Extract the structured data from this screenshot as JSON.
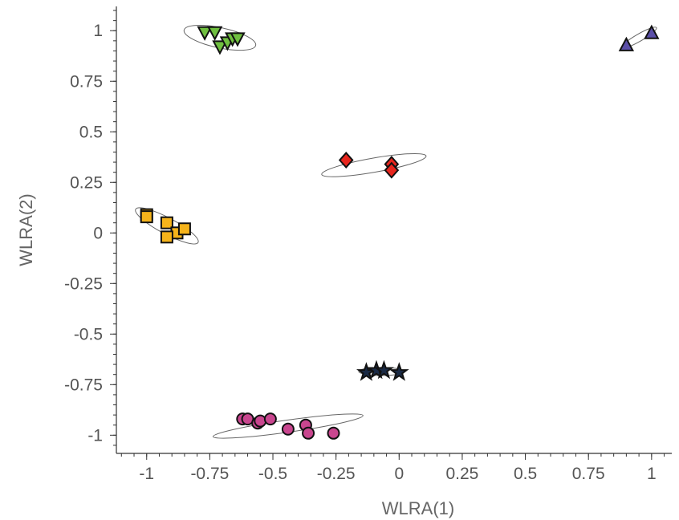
{
  "chart_data": {
    "type": "scatter",
    "title": "",
    "xlabel": "WLRA(1)",
    "ylabel": "WLRA(2)",
    "xlim": [
      -1.12,
      1.08
    ],
    "ylim": [
      -1.09,
      1.12
    ],
    "grid": false,
    "x_ticks": [
      -1,
      -0.75,
      -0.5,
      -0.25,
      0,
      0.25,
      0.5,
      0.75,
      1
    ],
    "x_tick_labels": [
      "-1",
      "-0.75",
      "-0.5",
      "-0.25",
      "0",
      "0.25",
      "0.5",
      "0.75",
      "1"
    ],
    "y_ticks": [
      1,
      0.75,
      0.5,
      0.25,
      0,
      -0.25,
      -0.5,
      -0.75,
      -1
    ],
    "y_tick_labels": [
      "1",
      "0.75",
      "0.5",
      "0.25",
      "0",
      "-0.25",
      "-0.5",
      "-0.75",
      "-1"
    ],
    "series": [
      {
        "marker": "triangle-down",
        "color": "#6fbf3f",
        "points": [
          [
            -0.77,
            0.99
          ],
          [
            -0.73,
            0.99
          ],
          [
            -0.71,
            0.92
          ],
          [
            -0.68,
            0.94
          ],
          [
            -0.66,
            0.96
          ],
          [
            -0.64,
            0.96
          ]
        ],
        "ellipse": {
          "cx": -0.71,
          "cy": 0.965,
          "rx": 0.145,
          "ry": 0.05,
          "angle_deg": -12
        }
      },
      {
        "marker": "triangle-up",
        "color": "#5b4fa8",
        "points": [
          [
            0.9,
            0.93
          ],
          [
            1.0,
            0.99
          ]
        ],
        "ellipse": {
          "cx": 0.95,
          "cy": 0.965,
          "rx": 0.08,
          "ry": 0.018,
          "angle_deg": 30
        }
      },
      {
        "marker": "diamond",
        "color": "#e8261e",
        "points": [
          [
            -0.21,
            0.36
          ],
          [
            -0.03,
            0.34
          ],
          [
            -0.03,
            0.31
          ]
        ],
        "ellipse": {
          "cx": -0.1,
          "cy": 0.335,
          "rx": 0.21,
          "ry": 0.035,
          "angle_deg": 10
        }
      },
      {
        "marker": "square",
        "color": "#f5b31b",
        "points": [
          [
            -1.0,
            0.09
          ],
          [
            -1.0,
            0.08
          ],
          [
            -0.92,
            0.05
          ],
          [
            -0.88,
            0.0
          ],
          [
            -0.85,
            0.02
          ],
          [
            -0.92,
            -0.02
          ]
        ],
        "ellipse": {
          "cx": -0.92,
          "cy": 0.035,
          "rx": 0.14,
          "ry": 0.04,
          "angle_deg": -28
        }
      },
      {
        "marker": "star",
        "color": "#1a2a45",
        "points": [
          [
            -0.13,
            -0.69
          ],
          [
            -0.09,
            -0.68
          ],
          [
            -0.06,
            -0.68
          ],
          [
            0.0,
            -0.69
          ]
        ],
        "ellipse": {
          "cx": -0.07,
          "cy": -0.685,
          "rx": 0.09,
          "ry": 0.02,
          "angle_deg": 0
        }
      },
      {
        "marker": "circle",
        "color": "#c9468f",
        "points": [
          [
            -0.62,
            -0.92
          ],
          [
            -0.6,
            -0.92
          ],
          [
            -0.56,
            -0.94
          ],
          [
            -0.55,
            -0.93
          ],
          [
            -0.51,
            -0.92
          ],
          [
            -0.44,
            -0.97
          ],
          [
            -0.37,
            -0.95
          ],
          [
            -0.36,
            -0.99
          ],
          [
            -0.26,
            -0.99
          ]
        ],
        "ellipse": {
          "cx": -0.44,
          "cy": -0.955,
          "rx": 0.3,
          "ry": 0.03,
          "angle_deg": 8
        }
      }
    ]
  }
}
